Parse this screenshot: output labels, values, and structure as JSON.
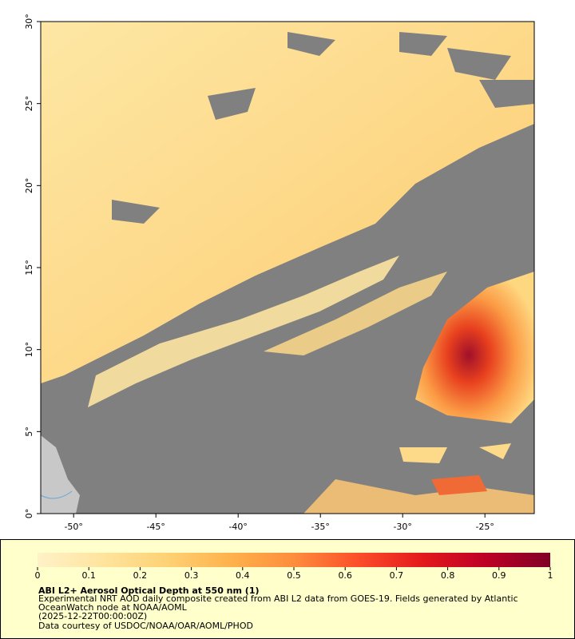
{
  "map": {
    "xlim": [
      -52,
      -22
    ],
    "ylim": [
      0,
      30
    ],
    "xticks": [
      {
        "value": -50,
        "label": "-50°"
      },
      {
        "value": -45,
        "label": "-45°"
      },
      {
        "value": -40,
        "label": "-40°"
      },
      {
        "value": -35,
        "label": "-35°"
      },
      {
        "value": -30,
        "label": "-30°"
      },
      {
        "value": -25,
        "label": "-25°"
      }
    ],
    "yticks": [
      {
        "value": 0,
        "label": "0°"
      },
      {
        "value": 5,
        "label": "5°"
      },
      {
        "value": 10,
        "label": "10°"
      },
      {
        "value": 15,
        "label": "15°"
      },
      {
        "value": 20,
        "label": "20°"
      },
      {
        "value": 25,
        "label": "25°"
      },
      {
        "value": 30,
        "label": "30°"
      }
    ]
  },
  "colorbar": {
    "lim": [
      0,
      1
    ],
    "ticks": [
      0,
      0.1,
      0.2,
      0.3,
      0.4,
      0.5,
      0.6,
      0.7,
      0.8,
      0.9,
      1
    ],
    "colors": [
      "#fff2c8",
      "#ffe49e",
      "#fed276",
      "#feb24c",
      "#fd8d3c",
      "#fc4e2a",
      "#e31a1c",
      "#bd0026",
      "#800026"
    ]
  },
  "caption": {
    "title": "ABI L2+ Aerosol Optical Depth at 550 nm (1)",
    "lines": [
      "Experimental NRT AOD daily composite created from ABI L2 data from GOES-19. Fields generated by Atlantic",
      "OceanWatch node at NOAA/AOML",
      "(2025-12-22T00:00:00Z)",
      "Data courtesy of USDOC/NOAA/OAR/AOML/PHOD"
    ]
  }
}
